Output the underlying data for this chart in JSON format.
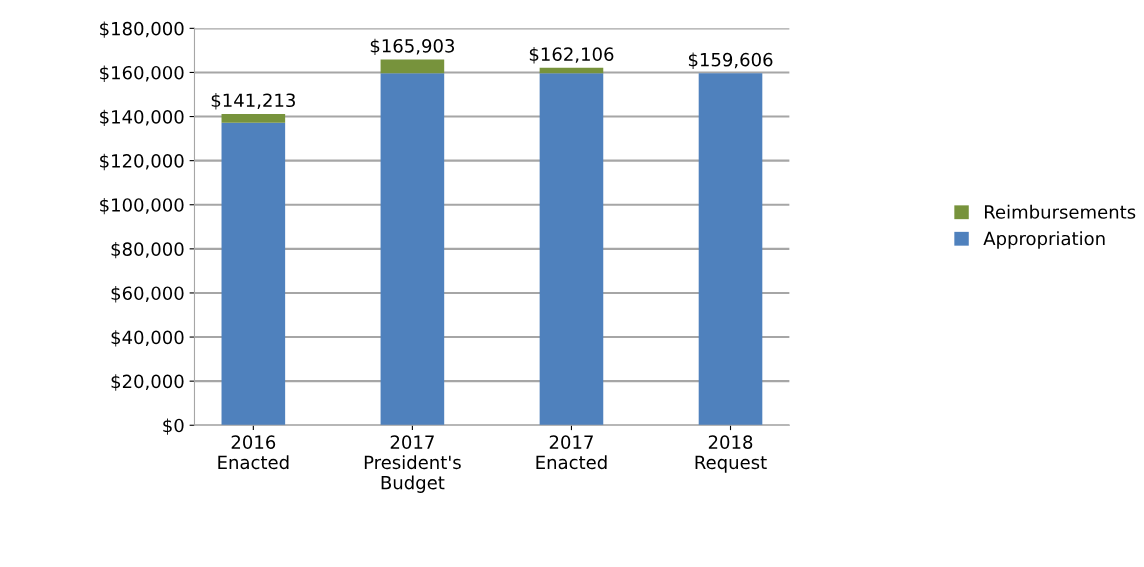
{
  "chart_data": {
    "type": "bar",
    "stacked": true,
    "categories": [
      "2016\nEnacted",
      "2017\nPresident's\nBudget",
      "2017\nEnacted",
      "2018\nRequest"
    ],
    "series": [
      {
        "name": "Appropriation",
        "color": "#4f81bd",
        "values": [
          137213,
          159606,
          159606,
          159606
        ]
      },
      {
        "name": "Reimbursements",
        "color": "#77933c",
        "values": [
          4000,
          6297,
          2500,
          0
        ]
      }
    ],
    "totals": [
      "$141,213",
      "$165,903",
      "$162,106",
      "$159,606"
    ],
    "ylim": [
      0,
      180000
    ],
    "yticks": [
      {
        "value": 0,
        "label": "$0"
      },
      {
        "value": 20000,
        "label": "$20,000"
      },
      {
        "value": 40000,
        "label": "$40,000"
      },
      {
        "value": 60000,
        "label": "$60,000"
      },
      {
        "value": 80000,
        "label": "$80,000"
      },
      {
        "value": 100000,
        "label": "$100,000"
      },
      {
        "value": 120000,
        "label": "$120,000"
      },
      {
        "value": 140000,
        "label": "$140,000"
      },
      {
        "value": 160000,
        "label": "$160,000"
      },
      {
        "value": 180000,
        "label": "$180,000"
      }
    ],
    "grid": "y",
    "legend": "right"
  }
}
